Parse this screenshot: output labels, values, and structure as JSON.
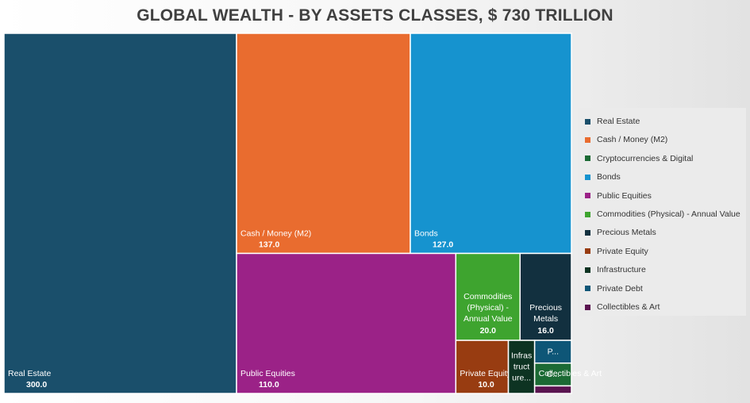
{
  "chart_data": {
    "type": "treemap",
    "title": "GLOBAL WEALTH - BY ASSETS CLASSES, $ 730 TRILLION",
    "legend_position": "right",
    "nodes": [
      {
        "name": "Real Estate",
        "value": 300.0,
        "value_label": "300.0",
        "color": "#1a4f6b"
      },
      {
        "name": "Cash / Money (M2)",
        "value": 137.0,
        "value_label": "137.0",
        "color": "#e96c2f"
      },
      {
        "name": "Bonds",
        "value": 127.0,
        "value_label": "127.0",
        "color": "#1693cf"
      },
      {
        "name": "Public Equities",
        "value": 110.0,
        "value_label": "110.0",
        "color": "#9b2287"
      },
      {
        "name": "Commodities (Physical) - Annual Value",
        "value": 20.0,
        "value_label": "20.0",
        "color": "#3ea42f"
      },
      {
        "name": "Precious Metals",
        "value": 16.0,
        "value_label": "16.0",
        "color": "#12303f"
      },
      {
        "name": "Private Equity",
        "value": 10.0,
        "value_label": "10.0",
        "color": "#983c11"
      },
      {
        "name": "Infrastructure",
        "value": 5.0,
        "color": "#0d3322"
      },
      {
        "name": "Private Debt",
        "value": 3.0,
        "color": "#0e5677"
      },
      {
        "name": "Cryptocurrencies & Digital",
        "value": 3.0,
        "color": "#1b6a34"
      },
      {
        "name": "Collectibles & Art",
        "value": 1.0,
        "color": "#5a1450"
      }
    ],
    "legend": [
      {
        "label": "Real Estate",
        "color": "#1a4f6b"
      },
      {
        "label": "Cash / Money (M2)",
        "color": "#e96c2f"
      },
      {
        "label": "Cryptocurrencies & Digital",
        "color": "#1b6a34"
      },
      {
        "label": "Bonds",
        "color": "#1693cf"
      },
      {
        "label": "Public Equities",
        "color": "#9b2287"
      },
      {
        "label": "Commodities (Physical) - Annual Value",
        "color": "#3ea42f"
      },
      {
        "label": "Precious Metals",
        "color": "#12303f"
      },
      {
        "label": "Private Equity",
        "color": "#983c11"
      },
      {
        "label": "Infrastructure",
        "color": "#0d3322"
      },
      {
        "label": "Private Debt",
        "color": "#0e5677"
      },
      {
        "label": "Collectibles & Art",
        "color": "#5a1450"
      }
    ],
    "tile_label_lines": {
      "Commodities (Physical) - Annual Value": [
        "Commodities",
        "(Physical) -",
        "Annual Value"
      ],
      "Precious Metals": [
        "Precious",
        "Metals"
      ],
      "Infrastructure": [
        "Infras",
        "truct",
        "ure..."
      ],
      "Private Debt": [
        "P..."
      ],
      "Cryptocurrencies & Digital": [
        "C..."
      ]
    }
  }
}
